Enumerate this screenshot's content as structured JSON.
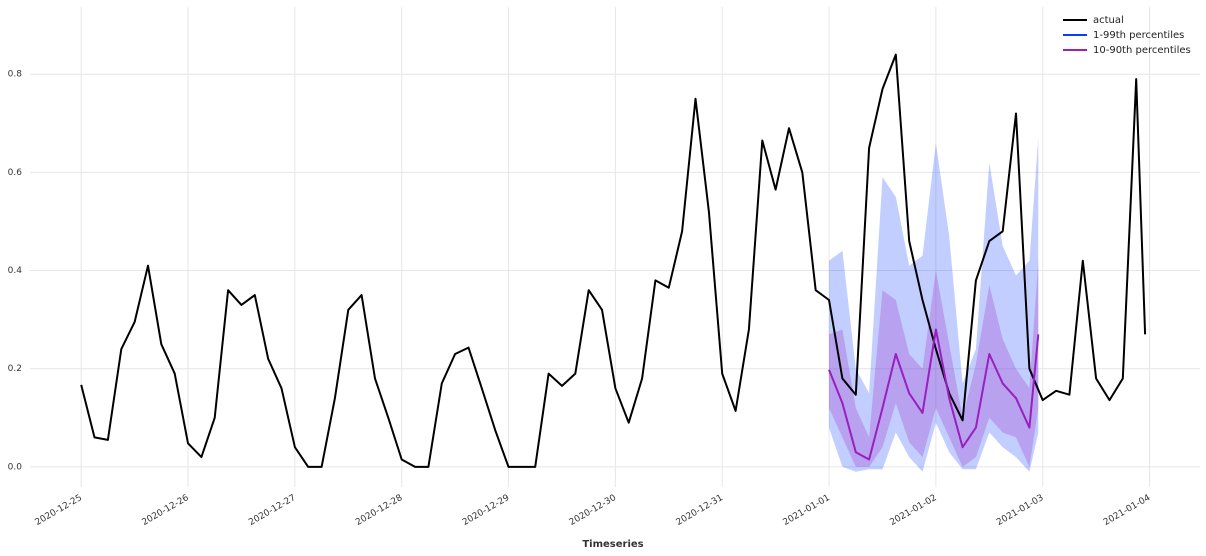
{
  "chart_data": {
    "type": "line",
    "x_label": "Timeseries",
    "xlim": [
      "2020-12-24 12:30",
      "2021-01-04 11:20"
    ],
    "ylim": [
      -0.041,
      0.937
    ],
    "xticks": [
      "2020-12-25",
      "2020-12-26",
      "2020-12-27",
      "2020-12-28",
      "2020-12-29",
      "2020-12-30",
      "2020-12-31",
      "2021-01-01",
      "2021-01-02",
      "2021-01-03",
      "2021-01-04"
    ],
    "yticks": [
      {
        "value": 0,
        "label": "0.0"
      },
      {
        "value": 0.2,
        "label": "0.2"
      },
      {
        "value": 0.4,
        "label": "0.4"
      },
      {
        "value": 0.6,
        "label": "0.6"
      },
      {
        "value": 0.8,
        "label": "0.8"
      }
    ],
    "grid": true,
    "legend": "upper right",
    "series": [
      {
        "name": "actual",
        "color": "#000000",
        "x": [
          "2020-12-25 00:00",
          "2020-12-25 03:00",
          "2020-12-25 06:00",
          "2020-12-25 09:00",
          "2020-12-25 12:00",
          "2020-12-25 15:00",
          "2020-12-25 18:00",
          "2020-12-25 21:00",
          "2020-12-26 00:00",
          "2020-12-26 03:00",
          "2020-12-26 06:00",
          "2020-12-26 09:00",
          "2020-12-26 12:00",
          "2020-12-26 15:00",
          "2020-12-26 18:00",
          "2020-12-26 21:00",
          "2020-12-27 00:00",
          "2020-12-27 03:00",
          "2020-12-27 06:00",
          "2020-12-27 09:00",
          "2020-12-27 12:00",
          "2020-12-27 15:00",
          "2020-12-27 18:00",
          "2020-12-27 21:00",
          "2020-12-28 00:00",
          "2020-12-28 03:00",
          "2020-12-28 06:00",
          "2020-12-28 09:00",
          "2020-12-28 12:00",
          "2020-12-28 15:00",
          "2020-12-28 18:00",
          "2020-12-28 21:00",
          "2020-12-29 00:00",
          "2020-12-29 03:00",
          "2020-12-29 06:00",
          "2020-12-29 09:00",
          "2020-12-29 12:00",
          "2020-12-29 15:00",
          "2020-12-29 18:00",
          "2020-12-29 21:00",
          "2020-12-30 00:00",
          "2020-12-30 03:00",
          "2020-12-30 06:00",
          "2020-12-30 09:00",
          "2020-12-30 12:00",
          "2020-12-30 15:00",
          "2020-12-30 18:00",
          "2020-12-30 21:00",
          "2020-12-31 00:00",
          "2020-12-31 03:00",
          "2020-12-31 06:00",
          "2020-12-31 09:00",
          "2020-12-31 12:00",
          "2020-12-31 15:00",
          "2020-12-31 18:00",
          "2020-12-31 21:00",
          "2021-01-01 00:00",
          "2021-01-01 03:00",
          "2021-01-01 06:00",
          "2021-01-01 09:00",
          "2021-01-01 12:00",
          "2021-01-01 15:00",
          "2021-01-01 18:00",
          "2021-01-01 21:00",
          "2021-01-02 00:00",
          "2021-01-02 03:00",
          "2021-01-02 06:00",
          "2021-01-02 09:00",
          "2021-01-02 12:00",
          "2021-01-02 15:00",
          "2021-01-02 18:00",
          "2021-01-02 21:00",
          "2021-01-03 00:00",
          "2021-01-03 03:00",
          "2021-01-03 06:00",
          "2021-01-03 09:00",
          "2021-01-03 12:00",
          "2021-01-03 15:00",
          "2021-01-03 18:00",
          "2021-01-03 21:00",
          "2021-01-03 23:00"
        ],
        "values": [
          0.167,
          0.06,
          0.055,
          0.24,
          0.295,
          0.41,
          0.25,
          0.19,
          0.048,
          0.02,
          0.1,
          0.36,
          0.33,
          0.35,
          0.22,
          0.16,
          0.04,
          0,
          0,
          0.14,
          0.32,
          0.35,
          0.18,
          0.1,
          0.015,
          0,
          0,
          0.17,
          0.23,
          0.243,
          0.16,
          0.075,
          0,
          0,
          0,
          0.19,
          0.165,
          0.19,
          0.36,
          0.32,
          0.16,
          0.09,
          0.18,
          0.38,
          0.365,
          0.48,
          0.75,
          0.52,
          0.19,
          0.114,
          0.28,
          0.665,
          0.565,
          0.69,
          0.6,
          0.36,
          0.34,
          0.18,
          0.147,
          0.65,
          0.77,
          0.84,
          0.46,
          0.34,
          0.24,
          0.15,
          0.095,
          0.38,
          0.46,
          0.48,
          0.72,
          0.2,
          0.136,
          0.155,
          0.147,
          0.42,
          0.18,
          0.136,
          0.18,
          0.79,
          0.27
        ]
      },
      {
        "name": "1-99th percentiles",
        "color": "#0a3cff",
        "x": [
          "2021-01-01 00:00",
          "2021-01-01 03:00",
          "2021-01-01 06:00",
          "2021-01-01 09:00",
          "2021-01-01 12:00",
          "2021-01-01 15:00",
          "2021-01-01 18:00",
          "2021-01-01 21:00",
          "2021-01-02 00:00",
          "2021-01-02 03:00",
          "2021-01-02 06:00",
          "2021-01-02 09:00",
          "2021-01-02 12:00",
          "2021-01-02 15:00",
          "2021-01-02 18:00",
          "2021-01-02 21:00",
          "2021-01-02 23:00"
        ],
        "lower": [
          0.08,
          0,
          -0.01,
          -0.005,
          -0.005,
          0.07,
          0.02,
          -0.01,
          0.09,
          0.03,
          -0.005,
          -0.005,
          0.07,
          0.04,
          0.02,
          -0.01,
          0.07
        ],
        "upper": [
          0.42,
          0.44,
          0.2,
          0.15,
          0.59,
          0.55,
          0.41,
          0.43,
          0.66,
          0.47,
          0.17,
          0.24,
          0.62,
          0.45,
          0.39,
          0.42,
          0.67
        ]
      },
      {
        "name": "10-90th percentiles",
        "color": "#9a1fbf",
        "x": [
          "2021-01-01 00:00",
          "2021-01-01 03:00",
          "2021-01-01 06:00",
          "2021-01-01 09:00",
          "2021-01-01 12:00",
          "2021-01-01 15:00",
          "2021-01-01 18:00",
          "2021-01-01 21:00",
          "2021-01-02 00:00",
          "2021-01-02 03:00",
          "2021-01-02 06:00",
          "2021-01-02 09:00",
          "2021-01-02 12:00",
          "2021-01-02 15:00",
          "2021-01-02 18:00",
          "2021-01-02 21:00",
          "2021-01-02 23:00"
        ],
        "lower": [
          0.12,
          0.06,
          0,
          0,
          0.04,
          0.13,
          0.05,
          0.02,
          0.12,
          0.06,
          0,
          0.02,
          0.1,
          0.07,
          0.06,
          0,
          0.12
        ],
        "upper": [
          0.27,
          0.28,
          0.12,
          0.06,
          0.36,
          0.34,
          0.23,
          0.2,
          0.4,
          0.25,
          0.1,
          0.21,
          0.37,
          0.26,
          0.2,
          0.16,
          0.42
        ],
        "values": [
          0.198,
          0.13,
          0.03,
          0.015,
          0.12,
          0.23,
          0.15,
          0.11,
          0.28,
          0.14,
          0.04,
          0.08,
          0.23,
          0.17,
          0.14,
          0.08,
          0.27
        ]
      }
    ]
  }
}
